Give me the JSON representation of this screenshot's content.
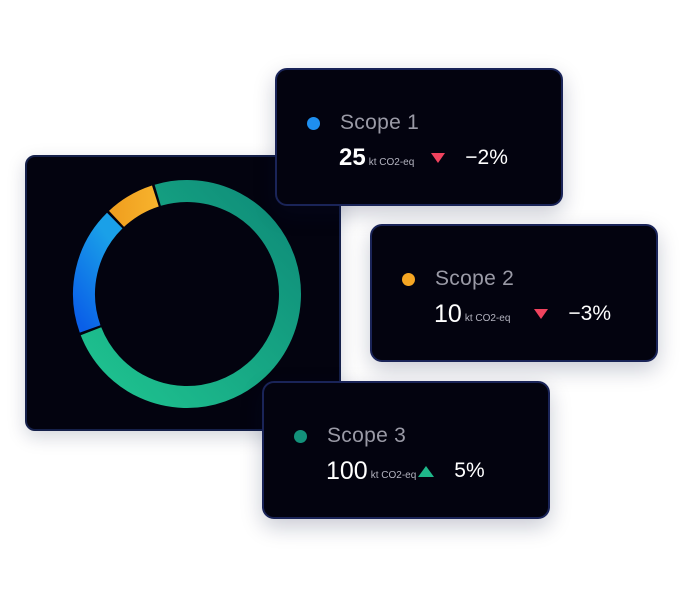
{
  "colors": {
    "scope_1": "#1e8ff0",
    "scope_2": "#f5a623",
    "scope_3": "#13917a",
    "trend_down": "#f0435e",
    "trend_up": "#1fb88a"
  },
  "chart_data": {
    "type": "pie",
    "variant": "donut",
    "categories": [
      "Scope 1",
      "Scope 2",
      "Scope 3"
    ],
    "values": [
      25,
      10,
      100
    ],
    "unit": "kt CO2-eq",
    "title": "",
    "series": [
      {
        "name": "Scope 1",
        "value": 25,
        "color": "#1e8ff0"
      },
      {
        "name": "Scope 2",
        "value": 10,
        "color": "#f5a623"
      },
      {
        "name": "Scope 3",
        "value": 100,
        "color": "#13917a"
      }
    ]
  },
  "scopes": [
    {
      "name": "Scope 1",
      "value": "25",
      "unit": "kt CO2-eq",
      "trend": "down",
      "change": "−2%",
      "trend_icon": "triangle-down-icon"
    },
    {
      "name": "Scope 2",
      "value": "10",
      "unit": "kt CO2-eq",
      "trend": "down",
      "change": "−3%",
      "trend_icon": "triangle-down-icon"
    },
    {
      "name": "Scope 3",
      "value": "100",
      "unit": "kt CO2-eq",
      "trend": "up",
      "change": "5%",
      "trend_icon": "triangle-up-icon"
    }
  ]
}
